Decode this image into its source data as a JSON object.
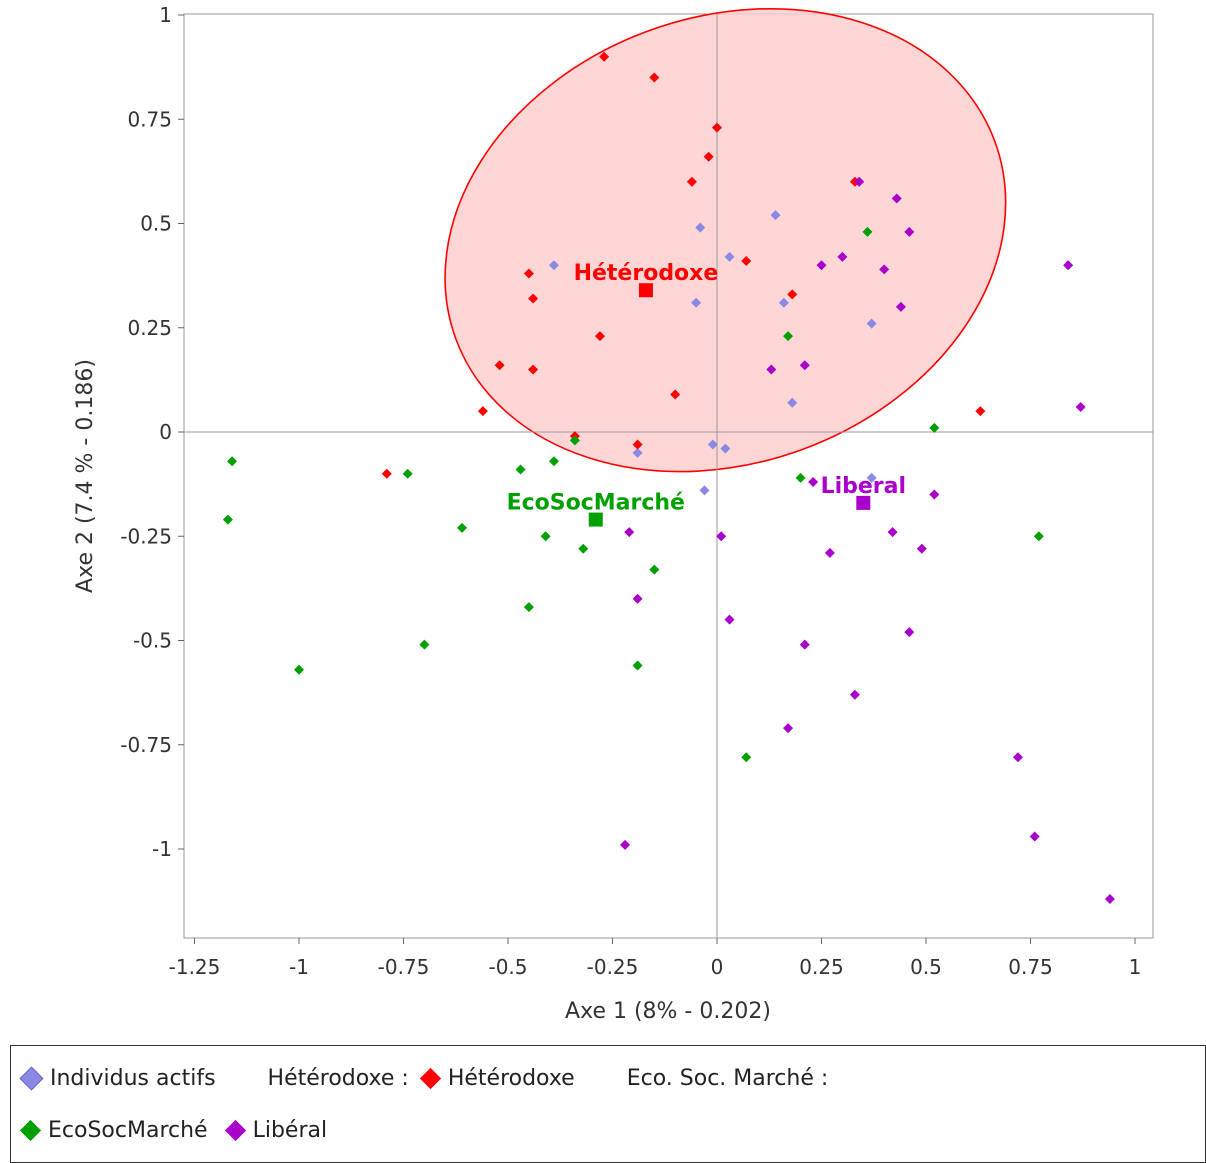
{
  "chart_data": {
    "type": "scatter",
    "xlabel": "Axe 1 (8% - 0.202)",
    "ylabel": "Axe 2 (7.4 % - 0.186)",
    "xlim": [
      -1.3,
      1.05
    ],
    "ylim": [
      -1.22,
      1.0
    ],
    "xticks": [
      -1.25,
      -1.0,
      -0.75,
      -0.5,
      -0.25,
      0,
      0.25,
      0.5,
      0.75,
      1
    ],
    "xtick_labels": [
      "-1.25",
      "-1",
      "-0.75",
      "-0.5",
      "-0.25",
      "0",
      "0.25",
      "0.5",
      "0.75",
      "1"
    ],
    "yticks": [
      1,
      0.75,
      0.5,
      0.25,
      0,
      -0.25,
      -0.5,
      -0.75,
      -1
    ],
    "ytick_labels": [
      "1",
      "0.75",
      "0.5",
      "0.25",
      "0",
      "-0.25",
      "-0.5",
      "-0.75",
      "-1"
    ],
    "grid": "zero-lines",
    "legend_position": "bottom",
    "series": [
      {
        "name": "Individus actifs",
        "color": "#8a8ae6",
        "points": [
          [
            -0.39,
            0.4
          ],
          [
            -0.04,
            0.49
          ],
          [
            0.03,
            0.42
          ],
          [
            0.14,
            0.52
          ],
          [
            -0.05,
            0.31
          ],
          [
            0.16,
            0.31
          ],
          [
            0.37,
            0.26
          ],
          [
            0.18,
            0.07
          ],
          [
            -0.34,
            -0.02
          ],
          [
            -0.19,
            -0.05
          ],
          [
            -0.01,
            -0.03
          ],
          [
            0.02,
            -0.04
          ],
          [
            -0.03,
            -0.14
          ],
          [
            0.37,
            -0.11
          ],
          [
            0.34,
            0.6
          ]
        ]
      },
      {
        "name": "Hétérodoxe",
        "color": "#ff0000",
        "points": [
          [
            -0.27,
            0.9
          ],
          [
            -0.15,
            0.85
          ],
          [
            0.0,
            0.73
          ],
          [
            -0.02,
            0.66
          ],
          [
            -0.06,
            0.6
          ],
          [
            0.33,
            0.6
          ],
          [
            0.07,
            0.41
          ],
          [
            -0.45,
            0.38
          ],
          [
            -0.44,
            0.32
          ],
          [
            0.18,
            0.33
          ],
          [
            -0.28,
            0.23
          ],
          [
            -0.52,
            0.16
          ],
          [
            -0.44,
            0.15
          ],
          [
            -0.1,
            0.09
          ],
          [
            -0.56,
            0.05
          ],
          [
            0.63,
            0.05
          ],
          [
            -0.34,
            -0.01
          ],
          [
            -0.19,
            -0.03
          ],
          [
            -0.79,
            -0.1
          ]
        ]
      },
      {
        "name": "EcoSocMarché",
        "color": "#00a000",
        "points": [
          [
            0.36,
            0.48
          ],
          [
            0.17,
            0.23
          ],
          [
            0.52,
            0.01
          ],
          [
            -1.16,
            -0.07
          ],
          [
            -1.17,
            -0.21
          ],
          [
            -0.74,
            -0.1
          ],
          [
            -0.47,
            -0.09
          ],
          [
            -0.39,
            -0.07
          ],
          [
            -0.34,
            -0.02
          ],
          [
            0.2,
            -0.11
          ],
          [
            -0.61,
            -0.23
          ],
          [
            -0.41,
            -0.25
          ],
          [
            -0.32,
            -0.28
          ],
          [
            -0.15,
            -0.33
          ],
          [
            -0.45,
            -0.42
          ],
          [
            -0.7,
            -0.51
          ],
          [
            -1.0,
            -0.57
          ],
          [
            -0.19,
            -0.56
          ],
          [
            0.07,
            -0.78
          ],
          [
            0.77,
            -0.25
          ]
        ]
      },
      {
        "name": "Libéral",
        "color": "#aa00cc",
        "points": [
          [
            0.34,
            0.6
          ],
          [
            0.43,
            0.56
          ],
          [
            0.46,
            0.48
          ],
          [
            0.3,
            0.42
          ],
          [
            0.25,
            0.4
          ],
          [
            0.4,
            0.39
          ],
          [
            0.44,
            0.3
          ],
          [
            0.84,
            0.4
          ],
          [
            0.21,
            0.16
          ],
          [
            0.13,
            0.15
          ],
          [
            0.87,
            0.06
          ],
          [
            0.23,
            -0.12
          ],
          [
            0.52,
            -0.15
          ],
          [
            0.42,
            -0.24
          ],
          [
            0.49,
            -0.28
          ],
          [
            0.27,
            -0.29
          ],
          [
            0.01,
            -0.25
          ],
          [
            -0.21,
            -0.24
          ],
          [
            -0.19,
            -0.4
          ],
          [
            0.03,
            -0.45
          ],
          [
            0.46,
            -0.48
          ],
          [
            0.21,
            -0.51
          ],
          [
            0.33,
            -0.63
          ],
          [
            0.17,
            -0.71
          ],
          [
            0.72,
            -0.78
          ],
          [
            0.76,
            -0.97
          ],
          [
            -0.22,
            -0.99
          ],
          [
            0.94,
            -1.12
          ]
        ]
      }
    ],
    "centroids": [
      {
        "label": "Hétérodoxe",
        "x": -0.17,
        "y": 0.34,
        "color": "#ff0000"
      },
      {
        "label": "EcoSocMarché",
        "x": -0.29,
        "y": -0.21,
        "color": "#00a000"
      },
      {
        "label": "Liberal",
        "x": 0.35,
        "y": -0.17,
        "color": "#aa00cc"
      }
    ],
    "ellipse": {
      "series": "Hétérodoxe",
      "color": "#ff0000",
      "fill": "#ffcccc",
      "center": [
        0.02,
        0.46
      ],
      "rx_data": 0.97,
      "ry_data": 0.5,
      "rotation_deg": -20
    }
  },
  "legend": {
    "items": [
      {
        "label": "Individus actifs",
        "color": "#8a8ae6"
      },
      {
        "group": "Hétérodoxe :"
      },
      {
        "label": "Hétérodoxe",
        "color": "#ff0000"
      },
      {
        "group": "Eco. Soc. Marché :"
      },
      {
        "label": "EcoSocMarché",
        "color": "#00a000"
      },
      {
        "label": "Libéral",
        "color": "#aa00cc"
      }
    ],
    "individus_label": "Individus actifs",
    "heterodoxe_group": "Hétérodoxe :",
    "heterodoxe_label": "Hétérodoxe",
    "ecosoc_group": "Eco. Soc. Marché :",
    "ecosoc_label": "EcoSocMarché",
    "liberal_label": "Libéral",
    "colors": {
      "individus": "#8a8ae6",
      "heterodoxe": "#ff0000",
      "ecosoc": "#00a000",
      "liberal": "#aa00cc"
    }
  }
}
